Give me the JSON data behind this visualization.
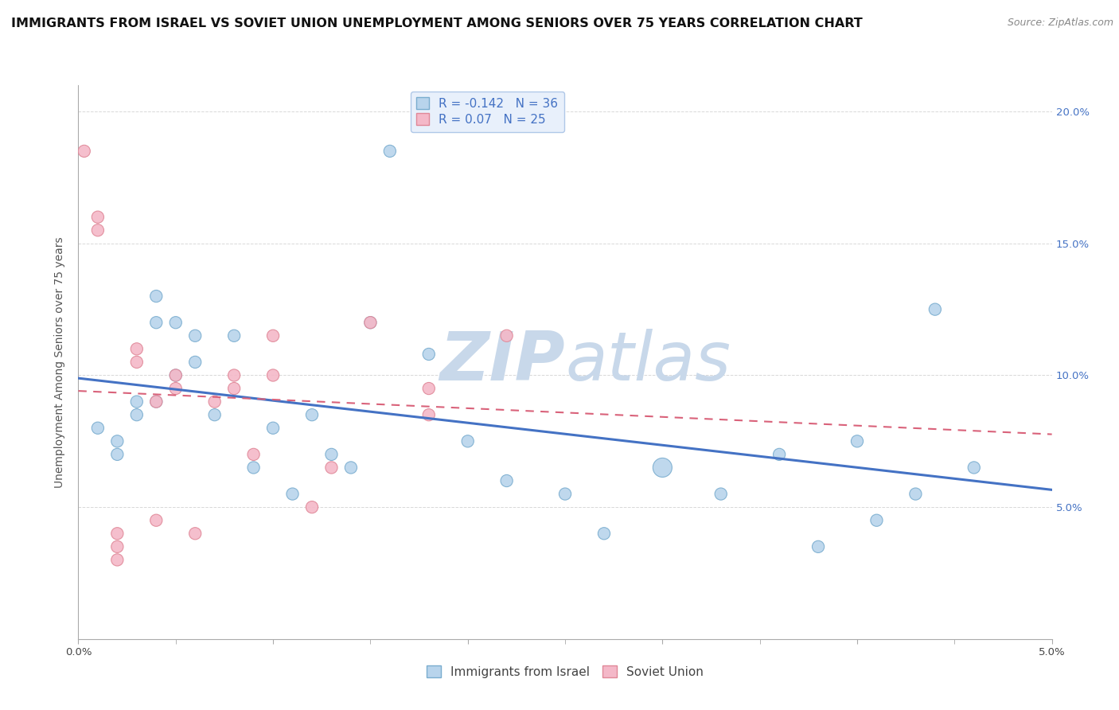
{
  "title": "IMMIGRANTS FROM ISRAEL VS SOVIET UNION UNEMPLOYMENT AMONG SENIORS OVER 75 YEARS CORRELATION CHART",
  "source": "Source: ZipAtlas.com",
  "ylabel": "Unemployment Among Seniors over 75 years",
  "xlim": [
    0.0,
    0.05
  ],
  "ylim": [
    0.0,
    0.21
  ],
  "xtick_positions": [
    0.0,
    0.01,
    0.02,
    0.03,
    0.04,
    0.05
  ],
  "xtick_labels": [
    "0.0%",
    "",
    "",
    "",
    "",
    "5.0%"
  ],
  "yticks": [
    0.0,
    0.05,
    0.1,
    0.15,
    0.2
  ],
  "ytick_labels_right": [
    "",
    "5.0%",
    "10.0%",
    "15.0%",
    "20.0%"
  ],
  "israel_R": -0.142,
  "israel_N": 36,
  "soviet_R": 0.07,
  "soviet_N": 25,
  "israel_color": "#b8d4ec",
  "israel_edge": "#7aadcf",
  "soviet_color": "#f4b8c8",
  "soviet_edge": "#e08898",
  "israel_line_color": "#4472c4",
  "soviet_line_color": "#d9627a",
  "legend_box_color": "#e8f0fb",
  "legend_border_color": "#b0c8e8",
  "watermark_zip": "ZIP",
  "watermark_atlas": "atlas",
  "watermark_color": "#c8d8ea",
  "israel_x": [
    0.001,
    0.002,
    0.002,
    0.003,
    0.003,
    0.004,
    0.004,
    0.004,
    0.005,
    0.005,
    0.006,
    0.006,
    0.007,
    0.008,
    0.009,
    0.01,
    0.011,
    0.012,
    0.013,
    0.014,
    0.015,
    0.016,
    0.018,
    0.02,
    0.022,
    0.025,
    0.027,
    0.03,
    0.033,
    0.036,
    0.038,
    0.04,
    0.041,
    0.043,
    0.044,
    0.046
  ],
  "israel_y": [
    0.08,
    0.075,
    0.07,
    0.09,
    0.085,
    0.13,
    0.12,
    0.09,
    0.12,
    0.1,
    0.115,
    0.105,
    0.085,
    0.115,
    0.065,
    0.08,
    0.055,
    0.085,
    0.07,
    0.065,
    0.12,
    0.185,
    0.108,
    0.075,
    0.06,
    0.055,
    0.04,
    0.065,
    0.055,
    0.07,
    0.035,
    0.075,
    0.045,
    0.055,
    0.125,
    0.065
  ],
  "israel_sizes": [
    120,
    120,
    120,
    120,
    120,
    120,
    120,
    120,
    120,
    120,
    120,
    120,
    120,
    120,
    120,
    120,
    120,
    120,
    120,
    120,
    120,
    120,
    120,
    120,
    120,
    120,
    120,
    300,
    120,
    120,
    120,
    120,
    120,
    120,
    120,
    120
  ],
  "soviet_x": [
    0.0003,
    0.001,
    0.001,
    0.002,
    0.002,
    0.002,
    0.003,
    0.003,
    0.004,
    0.004,
    0.005,
    0.005,
    0.006,
    0.007,
    0.008,
    0.008,
    0.009,
    0.01,
    0.01,
    0.012,
    0.013,
    0.015,
    0.018,
    0.018,
    0.022
  ],
  "soviet_y": [
    0.185,
    0.16,
    0.155,
    0.04,
    0.035,
    0.03,
    0.11,
    0.105,
    0.09,
    0.045,
    0.1,
    0.095,
    0.04,
    0.09,
    0.1,
    0.095,
    0.07,
    0.115,
    0.1,
    0.05,
    0.065,
    0.12,
    0.095,
    0.085,
    0.115
  ],
  "soviet_sizes": [
    120,
    120,
    120,
    120,
    120,
    120,
    120,
    120,
    120,
    120,
    120,
    120,
    120,
    120,
    120,
    120,
    120,
    120,
    120,
    120,
    120,
    120,
    120,
    120,
    120
  ],
  "background_color": "#ffffff",
  "grid_color": "#d8d8d8",
  "title_fontsize": 11.5,
  "axis_label_fontsize": 10,
  "tick_fontsize": 9.5,
  "legend_fontsize": 11
}
